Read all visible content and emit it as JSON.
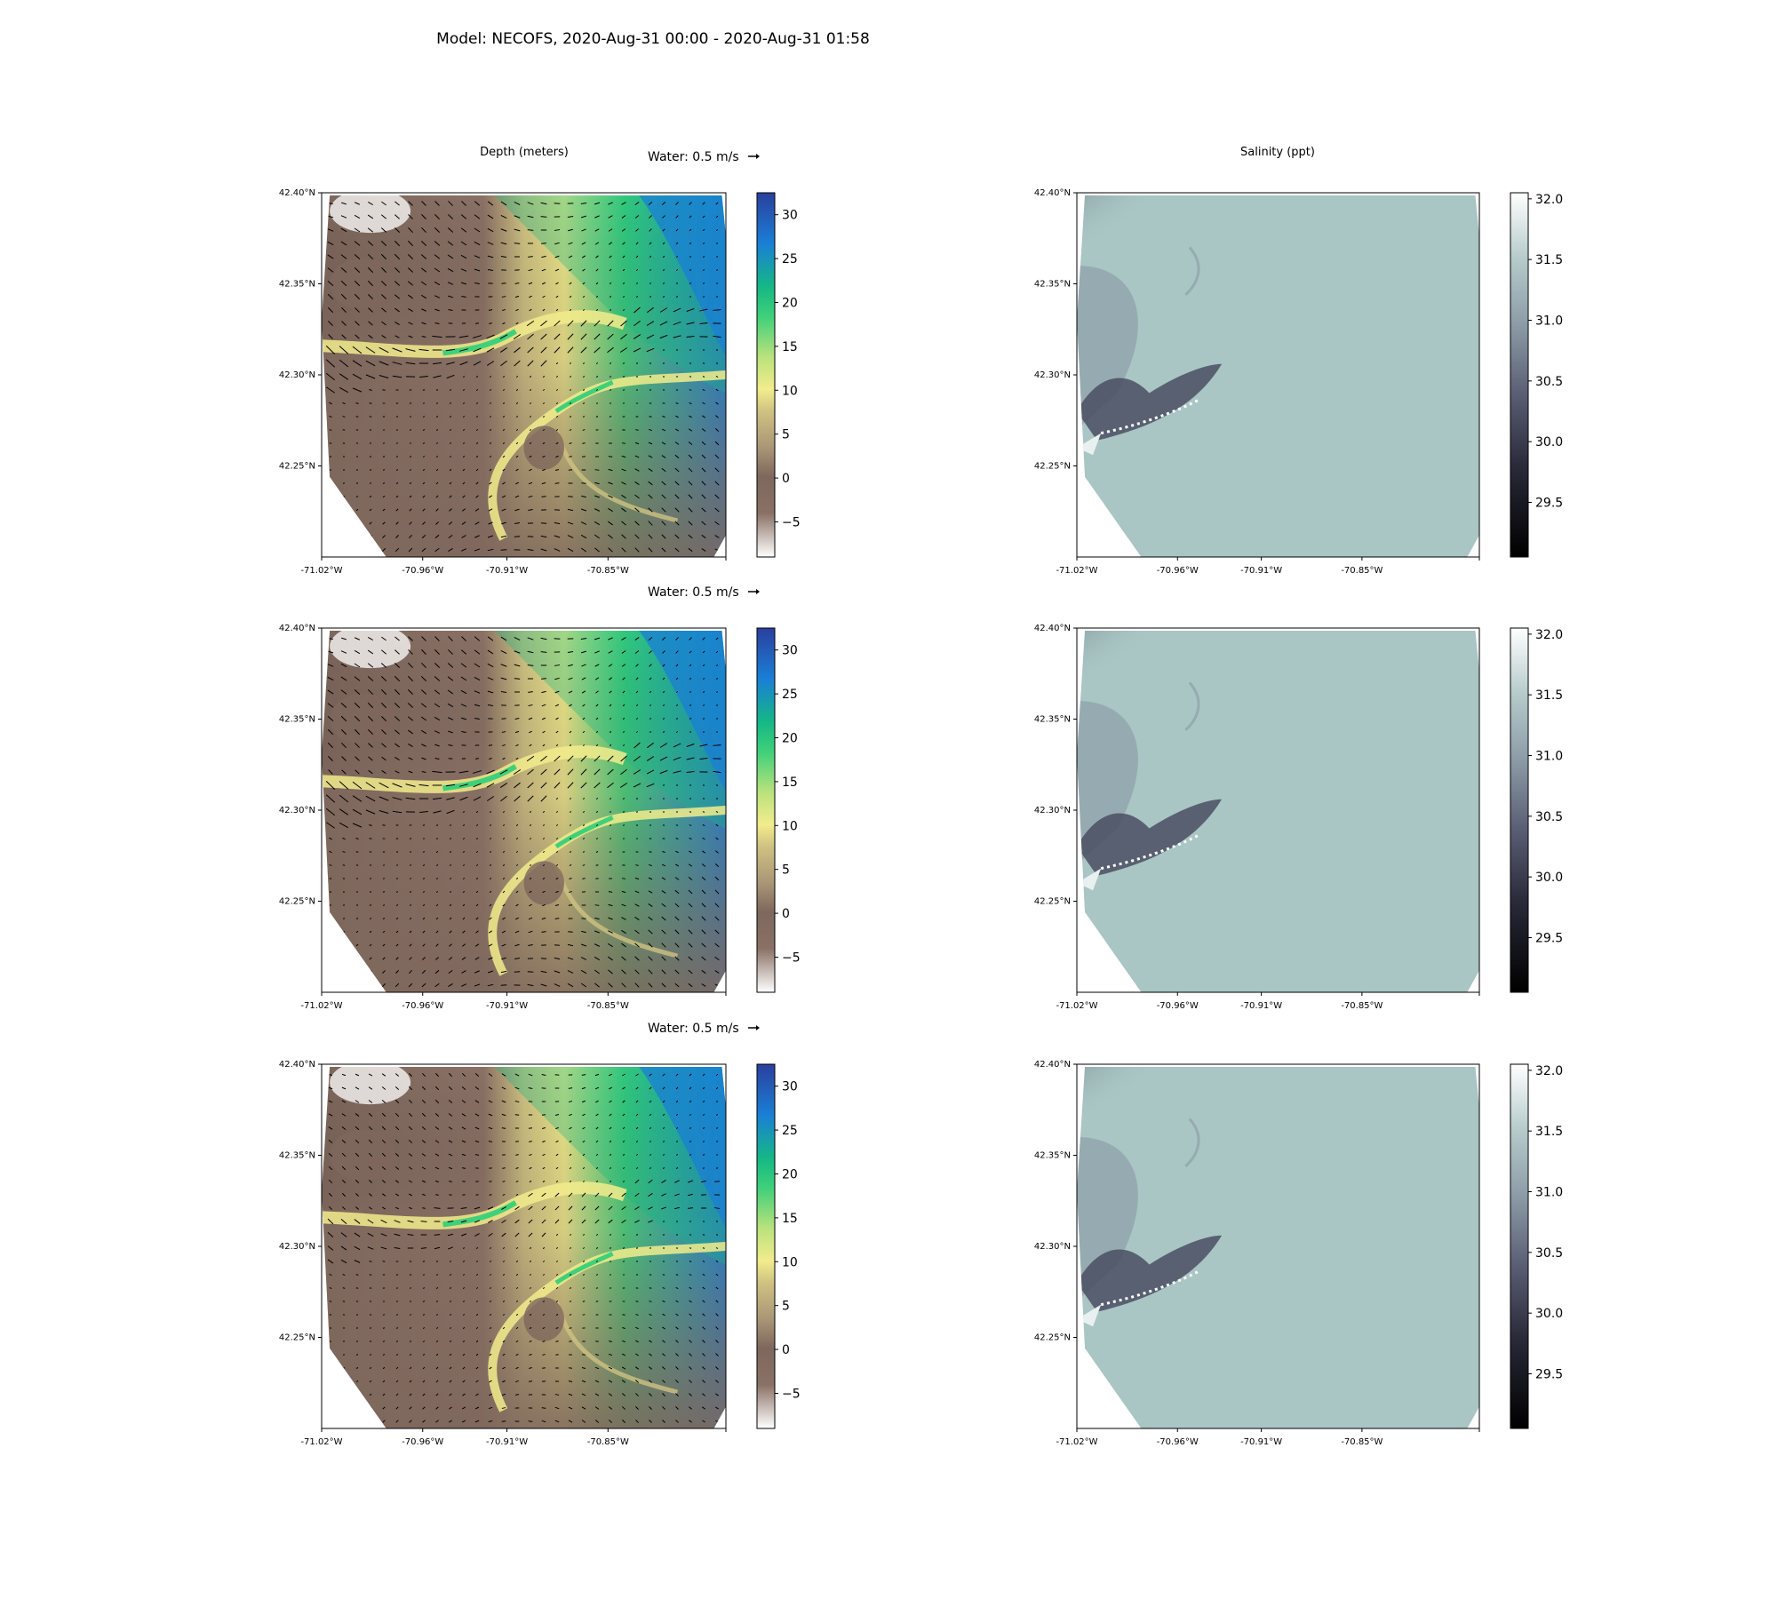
{
  "figure": {
    "suptitle": "Model: NECOFS, 2020-Aug-31 00:00 - 2020-Aug-31 01:58"
  },
  "depth_panel": {
    "title": "Depth (meters)",
    "quiver_key": "Water: 0.5 m/s",
    "colorbar_ticks": [
      "30",
      "25",
      "20",
      "15",
      "10",
      "5",
      "0",
      "−5"
    ],
    "colorbar_values": [
      30,
      25,
      20,
      15,
      10,
      5,
      0,
      -5
    ],
    "colorbar_range": [
      -9,
      32.5
    ],
    "colormap": [
      "#ffffff",
      "#8a7165",
      "#7e675c",
      "#a99676",
      "#cfc282",
      "#f2ec8c",
      "#b9e27c",
      "#3fd07a",
      "#16b884",
      "#1a7fd6",
      "#2a3f9e"
    ]
  },
  "salinity_panel": {
    "title": "Salinity (ppt)",
    "colorbar_ticks": [
      "32.0",
      "31.5",
      "31.0",
      "30.5",
      "30.0",
      "29.5"
    ],
    "colorbar_values": [
      32.0,
      31.5,
      31.0,
      30.5,
      30.0,
      29.5
    ],
    "colorbar_range": [
      29.05,
      32.05
    ],
    "colormap": [
      "#000000",
      "#2a2a3a",
      "#5b5f75",
      "#8f9faa",
      "#b6cbcb",
      "#ffffff"
    ],
    "field_color": "#a9c5c4"
  },
  "axes": {
    "lat_ticks": [
      "42.40°N",
      "42.35°N",
      "42.30°N",
      "42.25°N"
    ],
    "lat_values": [
      42.4,
      42.35,
      42.3,
      42.25
    ],
    "lat_range": [
      42.2,
      42.4
    ],
    "lon_ticks": [
      "-71.02°W",
      "-70.96°W",
      "-70.91°W",
      "-70.85°W"
    ],
    "lon_values": [
      -71.02,
      -70.96,
      -70.91,
      -70.85
    ],
    "lon_range": [
      -71.02,
      -70.78
    ]
  }
}
